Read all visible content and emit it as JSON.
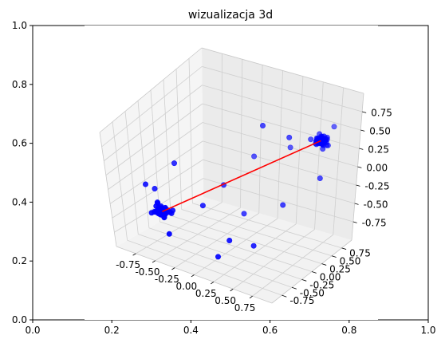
{
  "chart_data": {
    "type": "scatter",
    "title": "wizualizacja 3d",
    "outer_axes": {
      "xlim": [
        0,
        1
      ],
      "ylim": [
        0,
        1
      ],
      "x_ticks": [
        "0.0",
        "0.2",
        "0.4",
        "0.6",
        "0.8",
        "1.0"
      ],
      "y_ticks": [
        "0.0",
        "0.2",
        "0.4",
        "0.6",
        "0.8",
        "1.0"
      ]
    },
    "axes3d": {
      "xlim": [
        -1,
        1
      ],
      "ylim": [
        -1,
        1
      ],
      "zlim": [
        -1,
        1
      ],
      "x_ticks": [
        "-0.75",
        "-0.50",
        "-0.25",
        "0.00",
        "0.25",
        "0.50",
        "0.75"
      ],
      "y_ticks": [
        "-0.75",
        "-0.50",
        "-0.25",
        "0.00",
        "0.25",
        "0.50",
        "0.75"
      ],
      "z_ticks": [
        "-0.75",
        "-0.50",
        "-0.25",
        "0.00",
        "0.25",
        "0.50",
        "0.75"
      ],
      "grid": true
    },
    "point_color": "#0000ff",
    "line_color": "#ff0000",
    "line": [
      [
        -0.62,
        -0.55,
        -0.45
      ],
      [
        0.72,
        0.62,
        0.47
      ]
    ],
    "clusters": [
      {
        "center": [
          0.72,
          0.62,
          0.47
        ],
        "spread": 0.09,
        "count": 45
      },
      {
        "center": [
          -0.62,
          -0.55,
          -0.45
        ],
        "spread": 0.09,
        "count": 40
      }
    ],
    "outliers": [
      [
        0.15,
        0.35,
        0.65
      ],
      [
        0.45,
        0.4,
        0.55
      ],
      [
        -0.1,
        0.6,
        0.0
      ],
      [
        0.3,
        0.7,
        0.2
      ],
      [
        -0.2,
        0.1,
        -0.2
      ],
      [
        0.2,
        -0.5,
        -0.6
      ],
      [
        0.4,
        -0.3,
        -0.7
      ],
      [
        0.1,
        -0.6,
        -0.85
      ],
      [
        -0.85,
        -0.3,
        -0.3
      ],
      [
        -0.9,
        -0.4,
        -0.2
      ],
      [
        -0.3,
        -0.2,
        -0.4
      ],
      [
        0.85,
        0.4,
        0.1
      ],
      [
        0.6,
        0.9,
        0.3
      ],
      [
        0.5,
        0.2,
        -0.3
      ],
      [
        -0.4,
        -0.8,
        -0.6
      ],
      [
        0.0,
        0.2,
        -0.6
      ],
      [
        0.75,
        0.85,
        0.55
      ],
      [
        -0.7,
        -0.1,
        0.05
      ]
    ]
  }
}
